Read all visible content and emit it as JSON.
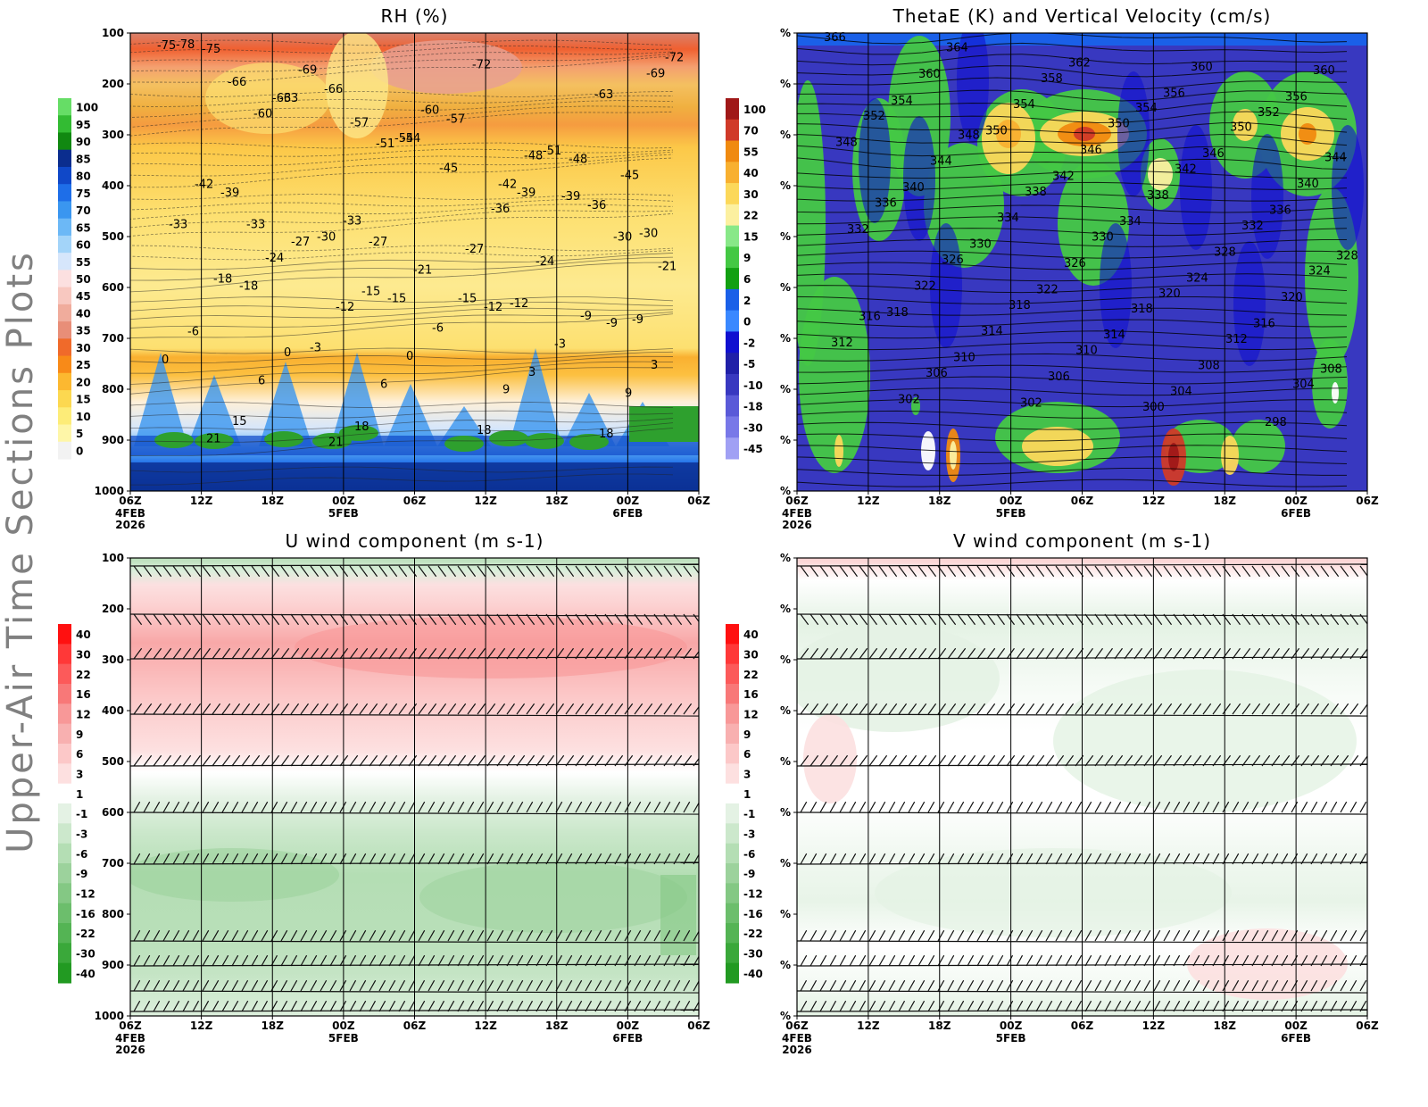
{
  "figure": {
    "side_title": "Upper-Air Time Sections Plots"
  },
  "chart_data": [
    {
      "type": "heatmap",
      "title": "RH (%)",
      "y_axis": {
        "type": "pressure",
        "ylim": [
          1000,
          100
        ],
        "tick_labels": [
          "100",
          "200",
          "300",
          "400",
          "500",
          "600",
          "700",
          "800",
          "900",
          "1000"
        ]
      },
      "x_axis": {
        "tick_labels": [
          "06Z",
          "12Z",
          "18Z",
          "00Z",
          "06Z",
          "12Z",
          "18Z",
          "00Z",
          "06Z"
        ],
        "date_labels": [
          {
            "at": 0,
            "lines": [
              "4FEB",
              "2026"
            ]
          },
          {
            "at": 3,
            "lines": [
              "5FEB"
            ]
          },
          {
            "at": 7,
            "lines": [
              "6FEB"
            ]
          }
        ]
      },
      "colorbar_labels": [
        "100",
        "95",
        "90",
        "85",
        "80",
        "75",
        "70",
        "65",
        "60",
        "55",
        "50",
        "45",
        "40",
        "35",
        "30",
        "25",
        "20",
        "15",
        "10",
        "5",
        "0"
      ],
      "colorbar_colors": [
        "#66dd66",
        "#33bb33",
        "#118811",
        "#0b2d8e",
        "#1048c8",
        "#1e6ee8",
        "#3a96f0",
        "#6cb8f6",
        "#a3d4f9",
        "#d6e6fb",
        "#fce0e0",
        "#f8c8c0",
        "#f0ac9c",
        "#e88e78",
        "#f06a2a",
        "#f88a18",
        "#fcb830",
        "#fcd850",
        "#fdec78",
        "#fef6a8",
        "#f2f2f2"
      ],
      "contour_labels": [
        "-75",
        "-63",
        "-54",
        "-48",
        "-69",
        "-60",
        "-51",
        "-42",
        "-45",
        "-66",
        "-57",
        "-72",
        "-63",
        "-75",
        "-66",
        "-57",
        "-48",
        "-78",
        "-69",
        "-60",
        "-51",
        "-72",
        "-63",
        "-54",
        "-39",
        "-30",
        "-33",
        "-27",
        "-36",
        "-30",
        "-39",
        "-33",
        "-27",
        "-36",
        "-42",
        "-30",
        "-45",
        "-39",
        "-33",
        "-27",
        "-21",
        "-24",
        "-21",
        "-24",
        "-15",
        "-12",
        "-9",
        "-18",
        "-15",
        "-12",
        "-9",
        "-18",
        "-12",
        "-15",
        "-9",
        "-6",
        "-3",
        "-6",
        "-3",
        "0",
        "0",
        "0",
        "3",
        "3",
        "6",
        "6",
        "9",
        "9",
        "15",
        "18",
        "18",
        "18",
        "21",
        "21"
      ]
    },
    {
      "type": "heatmap",
      "title": "ThetaE (K) and Vertical Velocity (cm/s)",
      "y_axis": {
        "type": "pressure",
        "ylim": [
          1000,
          100
        ],
        "tick_labels": [
          "%",
          "%",
          "%",
          "%",
          "%",
          "%",
          "%",
          "%",
          "%",
          "%"
        ]
      },
      "x_axis": {
        "tick_labels": [
          "06Z",
          "12Z",
          "18Z",
          "00Z",
          "06Z",
          "12Z",
          "18Z",
          "00Z",
          "06Z"
        ],
        "date_labels": [
          {
            "at": 0,
            "lines": [
              "4FEB",
              "2026"
            ]
          },
          {
            "at": 3,
            "lines": [
              "5FEB"
            ]
          },
          {
            "at": 7,
            "lines": [
              "6FEB"
            ]
          }
        ]
      },
      "colorbar_labels": [
        "100",
        "70",
        "55",
        "40",
        "30",
        "22",
        "15",
        "9",
        "6",
        "2",
        "0",
        "-2",
        "-5",
        "-10",
        "-18",
        "-30",
        "-45"
      ],
      "colorbar_colors": [
        "#a01818",
        "#d03a28",
        "#f08a10",
        "#f8b030",
        "#fcd85a",
        "#fcf0a0",
        "#88e888",
        "#44c844",
        "#12a012",
        "#1a60e8",
        "#3a88ff",
        "#1010d0",
        "#2020a8",
        "#3838c0",
        "#5a5ad8",
        "#7878e8",
        "#a0a0f4"
      ],
      "contour_labels": [
        "366",
        "364",
        "362",
        "360",
        "360",
        "360",
        "358",
        "356",
        "356",
        "354",
        "354",
        "354",
        "352",
        "352",
        "350",
        "350",
        "350",
        "348",
        "348",
        "346",
        "346",
        "344",
        "344",
        "342",
        "342",
        "340",
        "340",
        "338",
        "338",
        "336",
        "336",
        "334",
        "334",
        "332",
        "332",
        "330",
        "330",
        "328",
        "328",
        "326",
        "326",
        "324",
        "324",
        "322",
        "322",
        "320",
        "320",
        "318",
        "318",
        "318",
        "316",
        "316",
        "314",
        "314",
        "312",
        "312",
        "310",
        "310",
        "308",
        "308",
        "306",
        "306",
        "304",
        "304",
        "302",
        "302",
        "300",
        "298"
      ]
    },
    {
      "type": "heatmap",
      "title": "U wind component (m s-1)",
      "y_axis": {
        "type": "pressure",
        "ylim": [
          1000,
          100
        ],
        "tick_labels": [
          "100",
          "200",
          "300",
          "400",
          "500",
          "600",
          "700",
          "800",
          "900",
          "1000"
        ]
      },
      "x_axis": {
        "tick_labels": [
          "06Z",
          "12Z",
          "18Z",
          "00Z",
          "06Z",
          "12Z",
          "18Z",
          "00Z",
          "06Z"
        ],
        "date_labels": [
          {
            "at": 0,
            "lines": [
              "4FEB",
              "2026"
            ]
          },
          {
            "at": 3,
            "lines": [
              "5FEB"
            ]
          },
          {
            "at": 7,
            "lines": [
              "6FEB"
            ]
          }
        ]
      },
      "colorbar_labels": [
        "40",
        "30",
        "22",
        "16",
        "12",
        "9",
        "6",
        "3",
        "1",
        "-1",
        "-3",
        "-6",
        "-9",
        "-12",
        "-16",
        "-22",
        "-30",
        "-40"
      ],
      "colorbar_colors": [
        "#ff1010",
        "#ff3838",
        "#fc5a5a",
        "#f87878",
        "#f89898",
        "#f8b0b0",
        "#fcc8c8",
        "#fde0e0",
        "#ffffff",
        "#e4f2e4",
        "#cce8cc",
        "#b4deb4",
        "#9cd29c",
        "#84c884",
        "#6cbe6c",
        "#54b454",
        "#3aa83a",
        "#229a22"
      ]
    },
    {
      "type": "heatmap",
      "title": "V wind component (m s-1)",
      "y_axis": {
        "type": "pressure",
        "ylim": [
          1000,
          100
        ],
        "tick_labels": [
          "%",
          "%",
          "%",
          "%",
          "%",
          "%",
          "%",
          "%",
          "%",
          "%"
        ]
      },
      "x_axis": {
        "tick_labels": [
          "06Z",
          "12Z",
          "18Z",
          "00Z",
          "06Z",
          "12Z",
          "18Z",
          "00Z",
          "06Z"
        ],
        "date_labels": [
          {
            "at": 0,
            "lines": [
              "4FEB",
              "2026"
            ]
          },
          {
            "at": 3,
            "lines": [
              "5FEB"
            ]
          },
          {
            "at": 7,
            "lines": [
              "6FEB"
            ]
          }
        ]
      },
      "colorbar_labels": [
        "40",
        "30",
        "22",
        "16",
        "12",
        "9",
        "6",
        "3",
        "1",
        "-1",
        "-3",
        "-6",
        "-9",
        "-12",
        "-16",
        "-22",
        "-30",
        "-40"
      ],
      "colorbar_colors": [
        "#ff1010",
        "#ff3838",
        "#fc5a5a",
        "#f87878",
        "#f89898",
        "#f8b0b0",
        "#fcc8c8",
        "#fde0e0",
        "#ffffff",
        "#e4f2e4",
        "#cce8cc",
        "#b4deb4",
        "#9cd29c",
        "#84c884",
        "#6cbe6c",
        "#54b454",
        "#3aa83a",
        "#229a22"
      ]
    }
  ]
}
